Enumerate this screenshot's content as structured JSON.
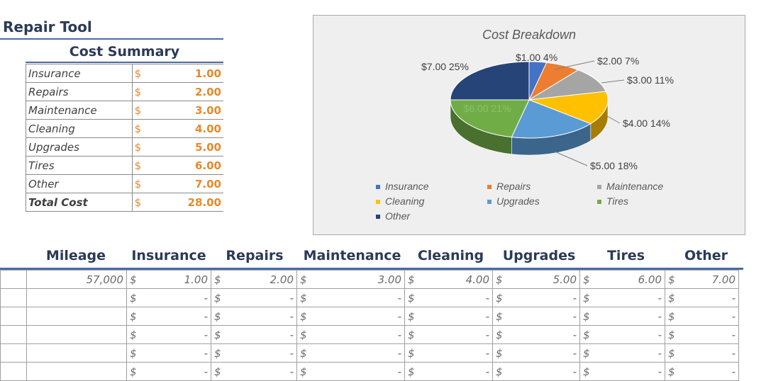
{
  "title": "Repair Tool",
  "summary": {
    "heading": "Cost Summary",
    "currency": "$",
    "rows": [
      {
        "label": "Insurance",
        "value": "1.00"
      },
      {
        "label": "Repairs",
        "value": "2.00"
      },
      {
        "label": "Maintenance",
        "value": "3.00"
      },
      {
        "label": "Cleaning",
        "value": "4.00"
      },
      {
        "label": "Upgrades",
        "value": "5.00"
      },
      {
        "label": "Tires",
        "value": "6.00"
      },
      {
        "label": "Other",
        "value": "7.00"
      }
    ],
    "total": {
      "label": "Total Cost",
      "value": "28.00"
    }
  },
  "chart_data": {
    "type": "pie",
    "title": "Cost Breakdown",
    "categories": [
      "Insurance",
      "Repairs",
      "Maintenance",
      "Cleaning",
      "Upgrades",
      "Tires",
      "Other"
    ],
    "values": [
      1,
      2,
      3,
      4,
      5,
      6,
      7
    ],
    "data_labels": [
      "$1.00 4%",
      "$2.00 7%",
      "$3.00 11%",
      "$4.00 14%",
      "$5.00 18%",
      "$6.00 21%",
      "$7.00 25%"
    ],
    "colors": [
      "#4472c4",
      "#ed7d31",
      "#a5a5a5",
      "#ffc000",
      "#5b9bd5",
      "#70ad47",
      "#264478"
    ],
    "legend_position": "bottom",
    "style": "3d"
  },
  "log": {
    "headers": [
      "Mileage",
      "Insurance",
      "Repairs",
      "Maintenance",
      "Cleaning",
      "Upgrades",
      "Tires",
      "Other"
    ],
    "currency": "$",
    "rows": [
      {
        "mileage": "57,000",
        "values": [
          "1.00",
          "2.00",
          "3.00",
          "4.00",
          "5.00",
          "6.00",
          "7.00"
        ]
      },
      {
        "mileage": "",
        "values": [
          "-",
          "-",
          "-",
          "-",
          "-",
          "-",
          "-"
        ]
      },
      {
        "mileage": "",
        "values": [
          "-",
          "-",
          "-",
          "-",
          "-",
          "-",
          "-"
        ]
      },
      {
        "mileage": "",
        "values": [
          "-",
          "-",
          "-",
          "-",
          "-",
          "-",
          "-"
        ]
      },
      {
        "mileage": "",
        "values": [
          "-",
          "-",
          "-",
          "-",
          "-",
          "-",
          "-"
        ]
      },
      {
        "mileage": "",
        "values": [
          "-",
          "-",
          "-",
          "-",
          "-",
          "-",
          "-"
        ]
      }
    ]
  }
}
